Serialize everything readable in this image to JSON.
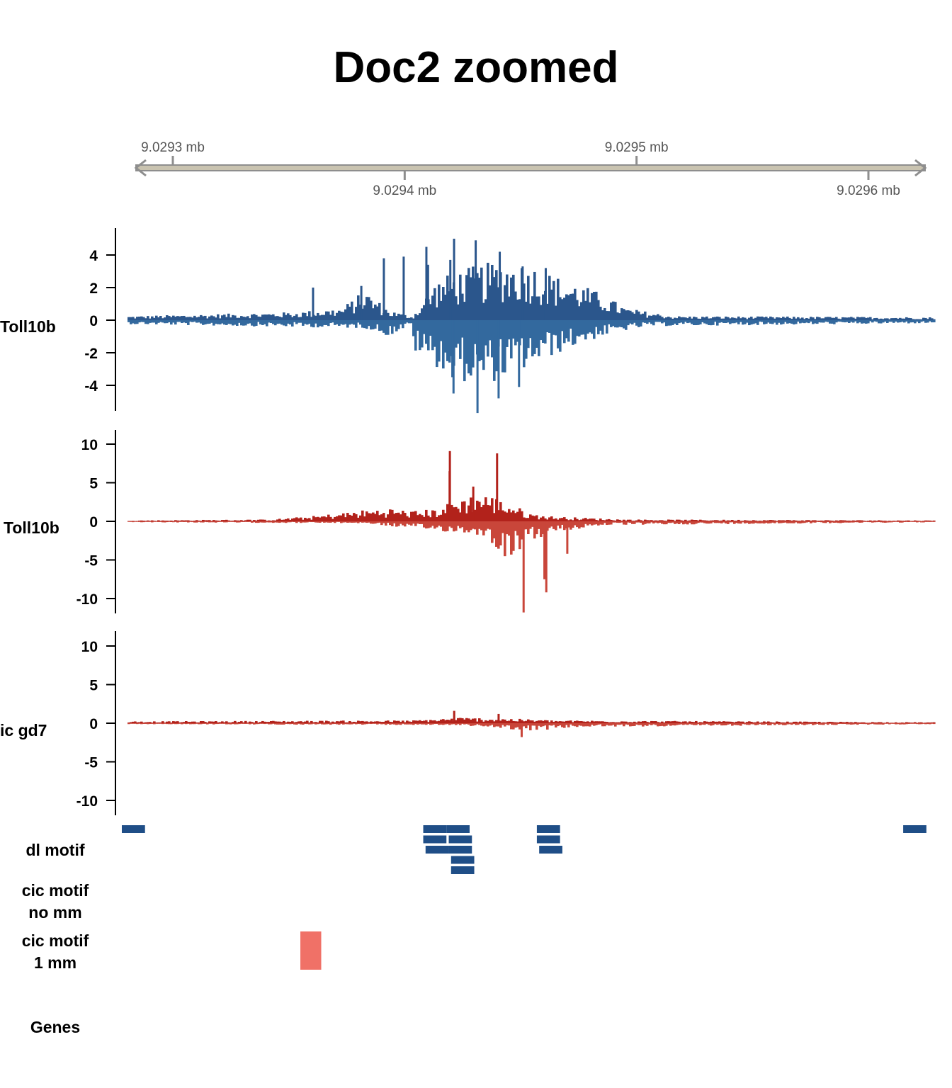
{
  "chart_data": {
    "type": "bar",
    "title": "Doc2 zoomed",
    "genome_axis": {
      "unit": "mb",
      "range_mb": [
        9.02928,
        9.02962
      ],
      "ticks": [
        {
          "value": 9.0293,
          "label": "9.0293 mb",
          "side": "top"
        },
        {
          "value": 9.0294,
          "label": "9.0294 mb",
          "side": "bottom"
        },
        {
          "value": 9.0295,
          "label": "9.0295 mb",
          "side": "top"
        },
        {
          "value": 9.0296,
          "label": "9.0296 mb",
          "side": "bottom"
        }
      ]
    },
    "tracks": [
      {
        "id": "track1",
        "label": "Toll10b",
        "color_pos": "#2b568c",
        "color_neg": "#33699e",
        "ylim": [
          -5.7,
          5.6
        ],
        "yticks": [
          4,
          2,
          0,
          -2,
          -4
        ],
        "tick_labels": [
          "4",
          "2",
          "0",
          "-2",
          "-4"
        ],
        "anchors_pos": [
          [
            9.02928,
            0.2
          ],
          [
            9.0294,
            0.2
          ],
          [
            9.02935,
            0.4
          ],
          [
            9.02937,
            0.6
          ],
          [
            9.02938,
            1.5
          ],
          [
            9.02939,
            0.5
          ],
          [
            9.02941,
            2
          ],
          [
            9.02942,
            2.5
          ],
          [
            9.02943,
            2.8
          ],
          [
            9.02944,
            3
          ],
          [
            9.02945,
            2.8
          ],
          [
            9.02946,
            2.2
          ],
          [
            9.02947,
            1.8
          ],
          [
            9.02948,
            1.3
          ],
          [
            9.02949,
            0.6
          ],
          [
            9.02951,
            0.2
          ],
          [
            9.02962,
            0.15
          ]
        ],
        "anchors_neg": [
          [
            9.02928,
            0.2
          ],
          [
            9.0294,
            0.2
          ],
          [
            9.02938,
            0.4
          ],
          [
            9.02939,
            0.8
          ],
          [
            9.0294,
            1.5
          ],
          [
            9.02941,
            2.3
          ],
          [
            9.02942,
            3
          ],
          [
            9.02943,
            3.2
          ],
          [
            9.02944,
            2.8
          ],
          [
            9.02945,
            2.3
          ],
          [
            9.02946,
            1.7
          ],
          [
            9.02947,
            1.2
          ],
          [
            9.02948,
            0.8
          ],
          [
            9.02949,
            0.5
          ],
          [
            9.0295,
            0.3
          ],
          [
            9.02962,
            0.15
          ]
        ],
        "spikes_pos": [
          [
            9.02936,
            2
          ],
          [
            9.02938,
            2.1
          ],
          [
            9.02939,
            3.8
          ],
          [
            9.0294,
            3.9
          ],
          [
            9.02941,
            4.5
          ],
          [
            9.02941,
            3.4
          ],
          [
            9.02942,
            5.0
          ],
          [
            9.02942,
            3.7
          ],
          [
            9.02943,
            4.9
          ],
          [
            9.02944,
            4.2
          ],
          [
            9.02945,
            3.3
          ],
          [
            9.02946,
            3.2
          ]
        ],
        "spikes_neg": [
          [
            9.02942,
            4.5
          ],
          [
            9.02943,
            5.7
          ],
          [
            9.02944,
            4.8
          ],
          [
            9.02945,
            4.1
          ],
          [
            9.02942,
            3.5
          ]
        ]
      },
      {
        "id": "track2",
        "label": "Toll10b",
        "color_pos": "#b2221b",
        "color_neg": "#c9463a",
        "ylim": [
          -11.9,
          11.2
        ],
        "yticks": [
          10,
          5,
          0,
          -5,
          -10
        ],
        "tick_labels": [
          "10",
          "5",
          "0",
          "-5",
          "-10"
        ],
        "anchors_pos": [
          [
            9.02928,
            0.1
          ],
          [
            9.02934,
            0.2
          ],
          [
            9.02936,
            0.6
          ],
          [
            9.02938,
            1.2
          ],
          [
            9.02939,
            1.4
          ],
          [
            9.0294,
            1.1
          ],
          [
            9.02941,
            1.3
          ],
          [
            9.02942,
            2.5
          ],
          [
            9.02943,
            3
          ],
          [
            9.02944,
            2
          ],
          [
            9.02945,
            0.8
          ],
          [
            9.02946,
            0.5
          ],
          [
            9.02947,
            0.4
          ],
          [
            9.02949,
            0.2
          ],
          [
            9.02962,
            0.1
          ]
        ],
        "anchors_neg": [
          [
            9.02928,
            0.1
          ],
          [
            9.02938,
            0.2
          ],
          [
            9.0294,
            0.8
          ],
          [
            9.02941,
            1
          ],
          [
            9.02942,
            1.2
          ],
          [
            9.02943,
            1.5
          ],
          [
            9.02944,
            4
          ],
          [
            9.02945,
            2
          ],
          [
            9.02946,
            1.2
          ],
          [
            9.02947,
            0.8
          ],
          [
            9.02948,
            0.4
          ],
          [
            9.02962,
            0.1
          ]
        ],
        "spikes_pos": [
          [
            9.02942,
            9.1
          ],
          [
            9.02944,
            8.8
          ],
          [
            9.02942,
            6.5
          ],
          [
            9.02943,
            4.5
          ]
        ],
        "spikes_neg": [
          [
            9.02945,
            11.8
          ],
          [
            9.02946,
            9.2
          ],
          [
            9.02946,
            7.5
          ],
          [
            9.02947,
            4.2
          ]
        ]
      },
      {
        "id": "track3",
        "label": "ic gd7",
        "color_pos": "#b2221b",
        "color_neg": "#c9463a",
        "ylim": [
          -11.9,
          11.2
        ],
        "yticks": [
          10,
          5,
          0,
          -5,
          -10
        ],
        "tick_labels": [
          "10",
          "5",
          "0",
          "-5",
          "-10"
        ],
        "anchors_pos": [
          [
            9.02928,
            0.2
          ],
          [
            9.0294,
            0.3
          ],
          [
            9.02942,
            0.6
          ],
          [
            9.02944,
            0.5
          ],
          [
            9.02946,
            0.3
          ],
          [
            9.02962,
            0.1
          ]
        ],
        "anchors_neg": [
          [
            9.02928,
            0.1
          ],
          [
            9.02942,
            0.2
          ],
          [
            9.02944,
            0.6
          ],
          [
            9.02945,
            0.8
          ],
          [
            9.02947,
            0.4
          ],
          [
            9.02962,
            0.1
          ]
        ],
        "spikes_pos": [
          [
            9.02942,
            1.6
          ],
          [
            9.02944,
            1.2
          ]
        ],
        "spikes_neg": [
          [
            9.02945,
            1.8
          ]
        ]
      }
    ],
    "motif_tracks": [
      {
        "label": "dl motif",
        "color": "#1f4e87",
        "features": [
          {
            "start": 9.029278,
            "end": 9.029288,
            "row": 0
          },
          {
            "start": 9.029408,
            "end": 9.029418,
            "row": 0
          },
          {
            "start": 9.029418,
            "end": 9.029428,
            "row": 0
          },
          {
            "start": 9.029408,
            "end": 9.029418,
            "row": 1
          },
          {
            "start": 9.029419,
            "end": 9.029429,
            "row": 1
          },
          {
            "start": 9.029409,
            "end": 9.029419,
            "row": 2
          },
          {
            "start": 9.029419,
            "end": 9.029429,
            "row": 2
          },
          {
            "start": 9.02942,
            "end": 9.02943,
            "row": 3
          },
          {
            "start": 9.02942,
            "end": 9.02943,
            "row": 4
          },
          {
            "start": 9.029457,
            "end": 9.029467,
            "row": 0
          },
          {
            "start": 9.029457,
            "end": 9.029467,
            "row": 1
          },
          {
            "start": 9.029458,
            "end": 9.029468,
            "row": 2
          },
          {
            "start": 9.029615,
            "end": 9.029625,
            "row": 0
          }
        ]
      },
      {
        "label": "cic motif no mm",
        "label_lines": [
          "cic motif",
          "no mm"
        ],
        "color": "#f07167",
        "features": []
      },
      {
        "label": "cic motif 1 mm",
        "label_lines": [
          "cic motif",
          "1 mm"
        ],
        "color": "#f07167",
        "features": [
          {
            "start": 9.029355,
            "end": 9.029364,
            "row": 0
          }
        ]
      },
      {
        "label": "Genes",
        "label_lines": [
          "Genes"
        ],
        "color": "#ffd58a",
        "features": []
      }
    ]
  }
}
